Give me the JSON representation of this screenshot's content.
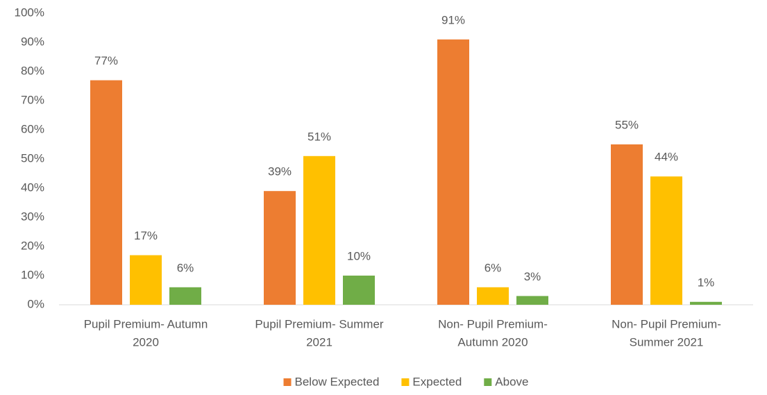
{
  "chart_data": {
    "type": "bar",
    "categories": [
      [
        "Pupil Premium- Autumn",
        "2020"
      ],
      [
        "Pupil Premium- Summer",
        "2021"
      ],
      [
        "Non- Pupil Premium-",
        "Autumn 2020"
      ],
      [
        "Non- Pupil Premium-",
        "Summer 2021"
      ]
    ],
    "series": [
      {
        "name": "Below Expected",
        "color": "#ed7d31",
        "values": [
          77,
          39,
          91,
          55
        ],
        "value_labels": [
          "77%",
          "39%",
          "91%",
          "55%"
        ]
      },
      {
        "name": "Expected",
        "color": "#ffc000",
        "values": [
          17,
          51,
          6,
          44
        ],
        "value_labels": [
          "17%",
          "51%",
          "6%",
          "44%"
        ]
      },
      {
        "name": "Above",
        "color": "#70ad47",
        "values": [
          6,
          10,
          3,
          1
        ],
        "value_labels": [
          "6%",
          "10%",
          "3%",
          "1%"
        ]
      }
    ],
    "ylim": [
      0,
      100
    ],
    "yticks": [
      {
        "value": 0,
        "label": "0%"
      },
      {
        "value": 10,
        "label": "10%"
      },
      {
        "value": 20,
        "label": "20%"
      },
      {
        "value": 30,
        "label": "30%"
      },
      {
        "value": 40,
        "label": "40%"
      },
      {
        "value": 50,
        "label": "50%"
      },
      {
        "value": 60,
        "label": "60%"
      },
      {
        "value": 70,
        "label": "70%"
      },
      {
        "value": 80,
        "label": "80%"
      },
      {
        "value": 90,
        "label": "90%"
      },
      {
        "value": 100,
        "label": "100%"
      }
    ],
    "grid": false,
    "legend": "bottom"
  }
}
